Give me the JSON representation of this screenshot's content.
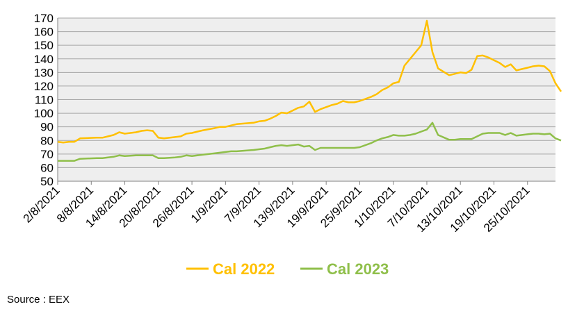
{
  "chart_data": {
    "type": "line",
    "x_tick_labels": [
      "2/8/2021",
      "8/8/2021",
      "14/8/2021",
      "20/8/2021",
      "26/8/2021",
      "1/9/2021",
      "7/9/2021",
      "13/9/2021",
      "19/9/2021",
      "25/9/2021",
      "1/10/2021",
      "7/10/2021",
      "13/10/2021",
      "19/10/2021",
      "25/10/2021"
    ],
    "x_range": [
      "2021-08-02",
      "2021-10-30"
    ],
    "ylim": [
      50,
      170
    ],
    "y_ticks": [
      50,
      60,
      70,
      80,
      90,
      100,
      110,
      120,
      130,
      140,
      150,
      160,
      170
    ],
    "grid": true,
    "plot_background": "#eeeeee",
    "legend_position": "bottom",
    "series": [
      {
        "name": "Cal 2022",
        "color": "#ffc000",
        "points": [
          [
            "2021-08-02",
            79
          ],
          [
            "2021-08-03",
            78.5
          ],
          [
            "2021-08-04",
            79
          ],
          [
            "2021-08-05",
            79
          ],
          [
            "2021-08-06",
            81.5
          ],
          [
            "2021-08-09",
            82
          ],
          [
            "2021-08-10",
            82
          ],
          [
            "2021-08-11",
            83
          ],
          [
            "2021-08-12",
            84
          ],
          [
            "2021-08-13",
            86
          ],
          [
            "2021-08-14",
            85
          ],
          [
            "2021-08-16",
            86
          ],
          [
            "2021-08-17",
            87
          ],
          [
            "2021-08-18",
            87.5
          ],
          [
            "2021-08-19",
            87
          ],
          [
            "2021-08-20",
            82
          ],
          [
            "2021-08-21",
            81.5
          ],
          [
            "2021-08-23",
            82.5
          ],
          [
            "2021-08-24",
            83
          ],
          [
            "2021-08-25",
            85
          ],
          [
            "2021-08-26",
            85.5
          ],
          [
            "2021-08-27",
            86.5
          ],
          [
            "2021-08-28",
            87.5
          ],
          [
            "2021-08-30",
            89
          ],
          [
            "2021-08-31",
            90
          ],
          [
            "2021-09-01",
            90
          ],
          [
            "2021-09-02",
            91
          ],
          [
            "2021-09-03",
            92
          ],
          [
            "2021-09-06",
            93
          ],
          [
            "2021-09-07",
            94
          ],
          [
            "2021-09-08",
            94.5
          ],
          [
            "2021-09-09",
            96
          ],
          [
            "2021-09-10",
            98
          ],
          [
            "2021-09-11",
            100.5
          ],
          [
            "2021-09-12",
            100
          ],
          [
            "2021-09-13",
            102
          ],
          [
            "2021-09-14",
            104
          ],
          [
            "2021-09-15",
            105
          ],
          [
            "2021-09-16",
            108.5
          ],
          [
            "2021-09-17",
            101
          ],
          [
            "2021-09-18",
            103
          ],
          [
            "2021-09-20",
            106
          ],
          [
            "2021-09-21",
            107
          ],
          [
            "2021-09-22",
            109
          ],
          [
            "2021-09-23",
            108
          ],
          [
            "2021-09-24",
            108
          ],
          [
            "2021-09-25",
            109
          ],
          [
            "2021-09-27",
            112
          ],
          [
            "2021-09-28",
            114
          ],
          [
            "2021-09-29",
            117
          ],
          [
            "2021-09-30",
            119
          ],
          [
            "2021-10-01",
            122
          ],
          [
            "2021-10-02",
            123
          ],
          [
            "2021-10-03",
            135
          ],
          [
            "2021-10-04",
            140
          ],
          [
            "2021-10-05",
            145
          ],
          [
            "2021-10-06",
            150
          ],
          [
            "2021-10-07",
            168
          ],
          [
            "2021-10-08",
            145
          ],
          [
            "2021-10-09",
            133
          ],
          [
            "2021-10-11",
            128
          ],
          [
            "2021-10-12",
            129
          ],
          [
            "2021-10-13",
            130
          ],
          [
            "2021-10-14",
            129.5
          ],
          [
            "2021-10-15",
            132
          ],
          [
            "2021-10-16",
            142
          ],
          [
            "2021-10-17",
            142.5
          ],
          [
            "2021-10-18",
            141
          ],
          [
            "2021-10-19",
            139
          ],
          [
            "2021-10-20",
            137
          ],
          [
            "2021-10-21",
            134
          ],
          [
            "2021-10-22",
            136
          ],
          [
            "2021-10-23",
            131.5
          ],
          [
            "2021-10-25",
            133.5
          ],
          [
            "2021-10-26",
            134.5
          ],
          [
            "2021-10-27",
            135
          ],
          [
            "2021-10-28",
            134.5
          ],
          [
            "2021-10-29",
            131
          ],
          [
            "2021-10-30",
            122
          ],
          [
            "2021-10-31",
            116
          ]
        ]
      },
      {
        "name": "Cal 2023",
        "color": "#8fbf4a",
        "points": [
          [
            "2021-08-02",
            65
          ],
          [
            "2021-08-03",
            65
          ],
          [
            "2021-08-04",
            65
          ],
          [
            "2021-08-05",
            65
          ],
          [
            "2021-08-06",
            66.5
          ],
          [
            "2021-08-09",
            67
          ],
          [
            "2021-08-10",
            67
          ],
          [
            "2021-08-11",
            67.5
          ],
          [
            "2021-08-12",
            68
          ],
          [
            "2021-08-13",
            69
          ],
          [
            "2021-08-14",
            68.5
          ],
          [
            "2021-08-16",
            69
          ],
          [
            "2021-08-17",
            69
          ],
          [
            "2021-08-18",
            69
          ],
          [
            "2021-08-19",
            69
          ],
          [
            "2021-08-20",
            67
          ],
          [
            "2021-08-21",
            67
          ],
          [
            "2021-08-23",
            67.5
          ],
          [
            "2021-08-24",
            68
          ],
          [
            "2021-08-25",
            69
          ],
          [
            "2021-08-26",
            68.5
          ],
          [
            "2021-08-27",
            69
          ],
          [
            "2021-08-28",
            69.5
          ],
          [
            "2021-08-30",
            70.5
          ],
          [
            "2021-08-31",
            71
          ],
          [
            "2021-09-01",
            71.5
          ],
          [
            "2021-09-02",
            72
          ],
          [
            "2021-09-03",
            72
          ],
          [
            "2021-09-06",
            73
          ],
          [
            "2021-09-07",
            73.5
          ],
          [
            "2021-09-08",
            74
          ],
          [
            "2021-09-09",
            75
          ],
          [
            "2021-09-10",
            76
          ],
          [
            "2021-09-11",
            76.5
          ],
          [
            "2021-09-12",
            76
          ],
          [
            "2021-09-13",
            76.5
          ],
          [
            "2021-09-14",
            77
          ],
          [
            "2021-09-15",
            75.5
          ],
          [
            "2021-09-16",
            76
          ],
          [
            "2021-09-17",
            73
          ],
          [
            "2021-09-18",
            74.5
          ],
          [
            "2021-09-20",
            74.5
          ],
          [
            "2021-09-21",
            74.5
          ],
          [
            "2021-09-22",
            74.5
          ],
          [
            "2021-09-23",
            74.5
          ],
          [
            "2021-09-24",
            74.5
          ],
          [
            "2021-09-25",
            75
          ],
          [
            "2021-09-27",
            78
          ],
          [
            "2021-09-28",
            80
          ],
          [
            "2021-09-29",
            81.5
          ],
          [
            "2021-09-30",
            82.5
          ],
          [
            "2021-10-01",
            84
          ],
          [
            "2021-10-02",
            83.5
          ],
          [
            "2021-10-03",
            83.5
          ],
          [
            "2021-10-04",
            84
          ],
          [
            "2021-10-05",
            85
          ],
          [
            "2021-10-06",
            86.5
          ],
          [
            "2021-10-07",
            88
          ],
          [
            "2021-10-08",
            93
          ],
          [
            "2021-10-09",
            84
          ],
          [
            "2021-10-11",
            80.5
          ],
          [
            "2021-10-12",
            80.5
          ],
          [
            "2021-10-13",
            81
          ],
          [
            "2021-10-14",
            81
          ],
          [
            "2021-10-15",
            81
          ],
          [
            "2021-10-16",
            83
          ],
          [
            "2021-10-17",
            85
          ],
          [
            "2021-10-18",
            85.5
          ],
          [
            "2021-10-19",
            85.5
          ],
          [
            "2021-10-20",
            85.5
          ],
          [
            "2021-10-21",
            84
          ],
          [
            "2021-10-22",
            85.5
          ],
          [
            "2021-10-23",
            83.5
          ],
          [
            "2021-10-25",
            84.5
          ],
          [
            "2021-10-26",
            85
          ],
          [
            "2021-10-27",
            85
          ],
          [
            "2021-10-28",
            84.5
          ],
          [
            "2021-10-29",
            85
          ],
          [
            "2021-10-30",
            81.5
          ],
          [
            "2021-10-31",
            80
          ]
        ]
      }
    ]
  },
  "source_text": "Source : EEX"
}
